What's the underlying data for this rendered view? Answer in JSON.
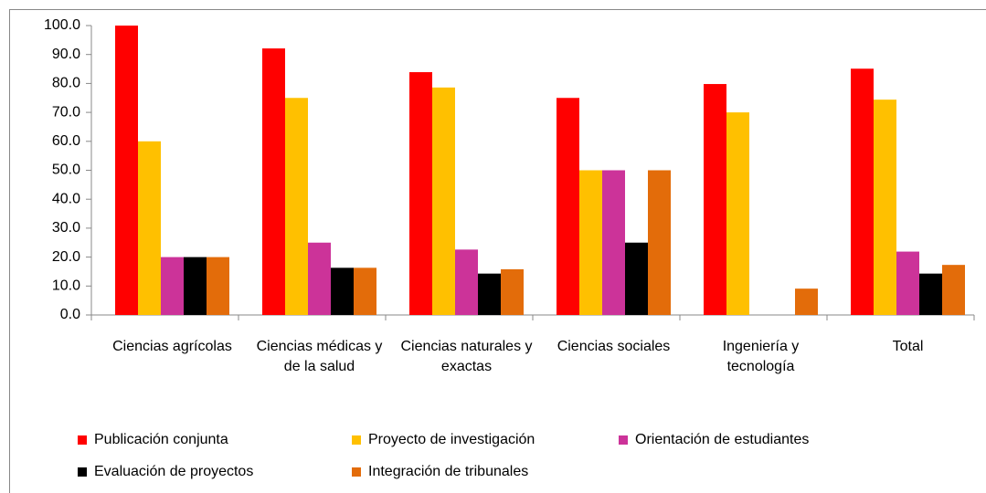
{
  "chart_data": {
    "type": "bar",
    "categories": [
      "Ciencias agrícolas",
      "Ciencias médicas y de la salud",
      "Ciencias naturales y exactas",
      "Ciencias sociales",
      "Ingeniería y tecnología",
      "Total"
    ],
    "series": [
      {
        "name": "Publicación conjunta",
        "color": "#ff0000",
        "values": [
          100,
          92.1,
          83.9,
          75,
          79.8,
          85.1
        ]
      },
      {
        "name": "Proyecto de investigación",
        "color": "#ffc000",
        "values": [
          60,
          75,
          78.6,
          50,
          70,
          74.4
        ]
      },
      {
        "name": "Orientación de estudiantes",
        "color": "#cc3399",
        "values": [
          20,
          25,
          22.6,
          50,
          0,
          21.9
        ]
      },
      {
        "name": "Evaluación de proyectos",
        "color": "#000000",
        "values": [
          20,
          16.3,
          14.3,
          25,
          0,
          14.3
        ]
      },
      {
        "name": "Integración de tribunales",
        "color": "#e36c0a",
        "values": [
          20,
          16.3,
          15.8,
          50,
          9.1,
          17.3
        ]
      }
    ],
    "ylim": [
      0,
      100
    ],
    "yticks": [
      {
        "value": 0,
        "label": "0.0"
      },
      {
        "value": 10,
        "label": "10.0"
      },
      {
        "value": 20,
        "label": "20.0"
      },
      {
        "value": 30,
        "label": "30.0"
      },
      {
        "value": 40,
        "label": "40.0"
      },
      {
        "value": 50,
        "label": "50.0"
      },
      {
        "value": 60,
        "label": "60.0"
      },
      {
        "value": 70,
        "label": "70.0"
      },
      {
        "value": 80,
        "label": "80.0"
      },
      {
        "value": 90,
        "label": "90.0"
      },
      {
        "value": 100,
        "label": "100.0"
      }
    ],
    "legend": "bottom"
  }
}
